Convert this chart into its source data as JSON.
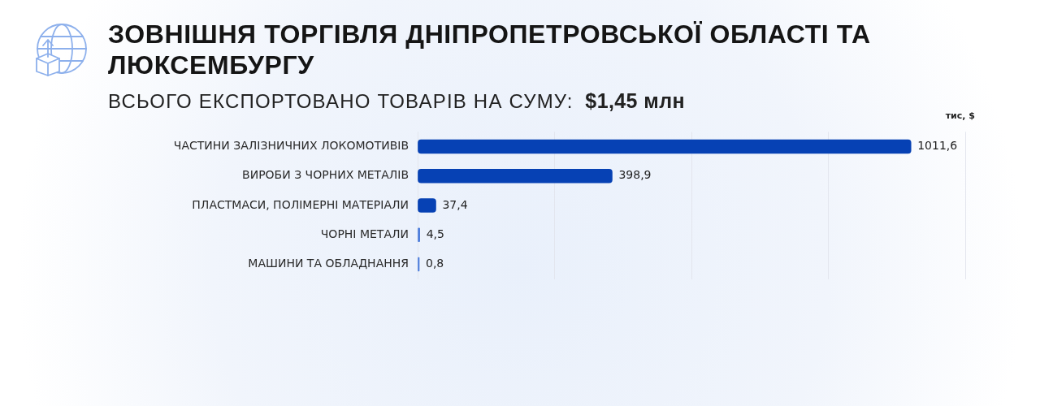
{
  "chart_data": {
    "type": "bar",
    "orientation": "horizontal",
    "title": "ЗОВНІШНЯ ТОРГІВЛЯ ДНІПРОПЕТРОВСЬКОЇ ОБЛАСТІ ТА ЛЮКСЕМБУРГУ",
    "subtitle": "ВСЬОГО ЕКСПОРТОВАНО ТОВАРІВ НА СУМУ:  $1,45 млн",
    "xlabel": "тис, $",
    "categories": [
      "ЧАСТИНИ ЗАЛІЗНИЧНИХ ЛОКОМОТИВІВ",
      "ВИРОБИ З ЧОРНИХ МЕТАЛІВ",
      "ПЛАСТМАСИ, ПОЛІМЕРНІ МАТЕРІАЛИ",
      "ЧОРНІ МЕТАЛИ",
      "МАШИНИ ТА ОБЛАДНАННЯ"
    ],
    "values": [
      1011.6,
      398.9,
      37.4,
      4.5,
      0.8
    ],
    "value_labels": [
      "1011,6",
      "398,9",
      "37,4",
      "4,5",
      "0,8"
    ],
    "colors": [
      "#0641b4",
      "#0641b4",
      "#0641b4",
      "#4f7fdc",
      "#4f7fdc"
    ],
    "grid": "x",
    "tick_labels": "y"
  }
}
